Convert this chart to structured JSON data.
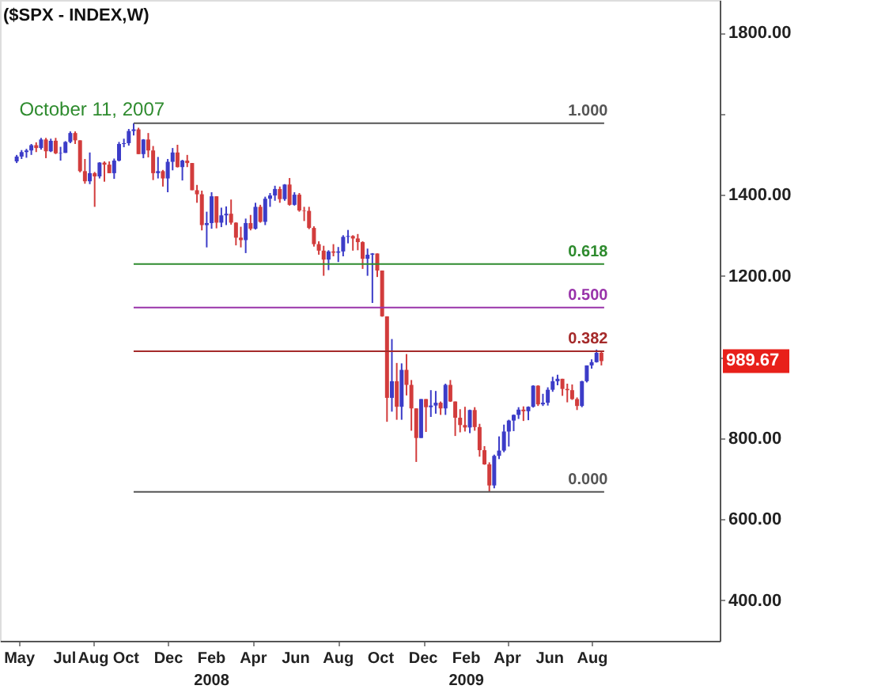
{
  "chart_data": {
    "type": "candlestick",
    "title": "($SPX - INDEX,W)",
    "x": [
      "2007-04-27",
      "2007-05-04",
      "2007-05-11",
      "2007-05-18",
      "2007-05-25",
      "2007-06-01",
      "2007-06-08",
      "2007-06-15",
      "2007-06-22",
      "2007-06-29",
      "2007-07-06",
      "2007-07-13",
      "2007-07-20",
      "2007-07-27",
      "2007-08-03",
      "2007-08-10",
      "2007-08-17",
      "2007-08-24",
      "2007-08-31",
      "2007-09-07",
      "2007-09-14",
      "2007-09-21",
      "2007-09-28",
      "2007-10-05",
      "2007-10-12",
      "2007-10-19",
      "2007-10-26",
      "2007-11-02",
      "2007-11-09",
      "2007-11-16",
      "2007-11-23",
      "2007-11-30",
      "2007-12-07",
      "2007-12-14",
      "2007-12-21",
      "2007-12-28",
      "2008-01-04",
      "2008-01-11",
      "2008-01-18",
      "2008-01-25",
      "2008-02-01",
      "2008-02-08",
      "2008-02-15",
      "2008-02-22",
      "2008-02-29",
      "2008-03-07",
      "2008-03-14",
      "2008-03-21",
      "2008-03-28",
      "2008-04-04",
      "2008-04-11",
      "2008-04-18",
      "2008-04-25",
      "2008-05-02",
      "2008-05-09",
      "2008-05-16",
      "2008-05-23",
      "2008-05-30",
      "2008-06-06",
      "2008-06-13",
      "2008-06-20",
      "2008-06-27",
      "2008-07-04",
      "2008-07-11",
      "2008-07-18",
      "2008-07-25",
      "2008-08-01",
      "2008-08-08",
      "2008-08-15",
      "2008-08-22",
      "2008-08-29",
      "2008-09-05",
      "2008-09-12",
      "2008-09-19",
      "2008-09-26",
      "2008-10-03",
      "2008-10-10",
      "2008-10-17",
      "2008-10-24",
      "2008-10-31",
      "2008-11-07",
      "2008-11-14",
      "2008-11-21",
      "2008-11-28",
      "2008-12-05",
      "2008-12-12",
      "2008-12-19",
      "2008-12-26",
      "2009-01-02",
      "2009-01-09",
      "2009-01-16",
      "2009-01-23",
      "2009-01-30",
      "2009-02-06",
      "2009-02-13",
      "2009-02-20",
      "2009-02-27",
      "2009-03-06",
      "2009-03-13",
      "2009-03-20",
      "2009-03-27",
      "2009-04-03",
      "2009-04-10",
      "2009-04-17",
      "2009-04-24",
      "2009-05-01",
      "2009-05-08",
      "2009-05-15",
      "2009-05-22",
      "2009-05-29",
      "2009-06-05",
      "2009-06-12",
      "2009-06-19",
      "2009-06-26",
      "2009-07-03",
      "2009-07-10",
      "2009-07-17",
      "2009-07-24",
      "2009-07-31",
      "2009-08-07",
      "2009-08-14"
    ],
    "ohlc": [
      [
        1482,
        1498,
        1478,
        1494
      ],
      [
        1494,
        1510,
        1488,
        1505
      ],
      [
        1505,
        1513,
        1491,
        1509
      ],
      [
        1509,
        1525,
        1498,
        1522
      ],
      [
        1522,
        1529,
        1505,
        1515
      ],
      [
        1515,
        1540,
        1511,
        1536
      ],
      [
        1536,
        1540,
        1490,
        1507
      ],
      [
        1507,
        1538,
        1505,
        1533
      ],
      [
        1533,
        1540,
        1500,
        1502
      ],
      [
        1502,
        1518,
        1484,
        1503
      ],
      [
        1503,
        1532,
        1503,
        1530
      ],
      [
        1530,
        1556,
        1527,
        1552
      ],
      [
        1552,
        1556,
        1525,
        1534
      ],
      [
        1534,
        1534,
        1455,
        1458
      ],
      [
        1458,
        1488,
        1427,
        1433
      ],
      [
        1433,
        1504,
        1426,
        1453
      ],
      [
        1453,
        1456,
        1370,
        1445
      ],
      [
        1445,
        1480,
        1440,
        1479
      ],
      [
        1479,
        1482,
        1432,
        1474
      ],
      [
        1474,
        1482,
        1453,
        1453
      ],
      [
        1453,
        1489,
        1439,
        1484
      ],
      [
        1484,
        1530,
        1482,
        1525
      ],
      [
        1525,
        1538,
        1517,
        1527
      ],
      [
        1527,
        1562,
        1521,
        1557
      ],
      [
        1557,
        1576,
        1546,
        1561
      ],
      [
        1561,
        1565,
        1500,
        1500
      ],
      [
        1500,
        1537,
        1490,
        1536
      ],
      [
        1536,
        1552,
        1492,
        1509
      ],
      [
        1509,
        1520,
        1436,
        1453
      ],
      [
        1453,
        1493,
        1440,
        1458
      ],
      [
        1458,
        1461,
        1420,
        1440
      ],
      [
        1440,
        1488,
        1406,
        1481
      ],
      [
        1481,
        1515,
        1460,
        1504
      ],
      [
        1504,
        1523,
        1467,
        1468
      ],
      [
        1468,
        1486,
        1435,
        1484
      ],
      [
        1484,
        1498,
        1468,
        1478
      ],
      [
        1478,
        1478,
        1411,
        1411
      ],
      [
        1411,
        1424,
        1380,
        1401
      ],
      [
        1401,
        1410,
        1312,
        1325
      ],
      [
        1325,
        1358,
        1270,
        1330
      ],
      [
        1330,
        1406,
        1316,
        1396
      ],
      [
        1396,
        1396,
        1317,
        1331
      ],
      [
        1331,
        1368,
        1320,
        1349
      ],
      [
        1349,
        1371,
        1325,
        1353
      ],
      [
        1353,
        1388,
        1326,
        1331
      ],
      [
        1331,
        1332,
        1275,
        1294
      ],
      [
        1294,
        1321,
        1270,
        1288
      ],
      [
        1288,
        1341,
        1256,
        1330
      ],
      [
        1330,
        1350,
        1312,
        1316
      ],
      [
        1316,
        1380,
        1314,
        1370
      ],
      [
        1370,
        1375,
        1331,
        1333
      ],
      [
        1333,
        1395,
        1325,
        1390
      ],
      [
        1390,
        1404,
        1370,
        1398
      ],
      [
        1398,
        1422,
        1385,
        1414
      ],
      [
        1414,
        1420,
        1380,
        1389
      ],
      [
        1389,
        1426,
        1385,
        1425
      ],
      [
        1425,
        1441,
        1373,
        1375
      ],
      [
        1375,
        1406,
        1373,
        1400
      ],
      [
        1400,
        1404,
        1358,
        1361
      ],
      [
        1361,
        1370,
        1335,
        1360
      ],
      [
        1360,
        1370,
        1315,
        1318
      ],
      [
        1318,
        1322,
        1272,
        1278
      ],
      [
        1278,
        1285,
        1252,
        1262
      ],
      [
        1262,
        1274,
        1200,
        1240
      ],
      [
        1240,
        1263,
        1214,
        1260
      ],
      [
        1260,
        1278,
        1248,
        1257
      ],
      [
        1257,
        1271,
        1234,
        1260
      ],
      [
        1260,
        1300,
        1248,
        1296
      ],
      [
        1296,
        1313,
        1280,
        1298
      ],
      [
        1298,
        1300,
        1262,
        1292
      ],
      [
        1292,
        1303,
        1263,
        1283
      ],
      [
        1283,
        1285,
        1217,
        1242
      ],
      [
        1242,
        1267,
        1200,
        1252
      ],
      [
        1252,
        1256,
        1133,
        1255
      ],
      [
        1255,
        1255,
        1197,
        1213
      ],
      [
        1213,
        1213,
        1099,
        1100
      ],
      [
        1100,
        1100,
        840,
        899
      ],
      [
        899,
        1044,
        865,
        940
      ],
      [
        940,
        985,
        845,
        877
      ],
      [
        877,
        984,
        845,
        968
      ],
      [
        968,
        1007,
        905,
        931
      ],
      [
        931,
        943,
        818,
        873
      ],
      [
        873,
        873,
        741,
        800
      ],
      [
        800,
        896,
        800,
        896
      ],
      [
        896,
        896,
        815,
        876
      ],
      [
        876,
        918,
        852,
        880
      ],
      [
        880,
        916,
        860,
        887
      ],
      [
        887,
        890,
        857,
        873
      ],
      [
        873,
        934,
        857,
        931
      ],
      [
        931,
        943,
        889,
        890
      ],
      [
        890,
        890,
        805,
        850
      ],
      [
        850,
        871,
        814,
        832
      ],
      [
        832,
        877,
        816,
        826
      ],
      [
        826,
        870,
        812,
        869
      ],
      [
        869,
        876,
        818,
        827
      ],
      [
        827,
        835,
        754,
        770
      ],
      [
        770,
        780,
        734,
        735
      ],
      [
        735,
        740,
        667,
        683
      ],
      [
        683,
        759,
        676,
        756
      ],
      [
        756,
        804,
        748,
        769
      ],
      [
        769,
        833,
        765,
        816
      ],
      [
        816,
        845,
        779,
        843
      ],
      [
        843,
        858,
        817,
        857
      ],
      [
        857,
        876,
        847,
        870
      ],
      [
        870,
        878,
        842,
        866
      ],
      [
        866,
        878,
        844,
        877
      ],
      [
        877,
        930,
        875,
        929
      ],
      [
        929,
        930,
        879,
        883
      ],
      [
        883,
        909,
        879,
        887
      ],
      [
        887,
        925,
        880,
        919
      ],
      [
        919,
        951,
        914,
        940
      ],
      [
        940,
        956,
        930,
        946
      ],
      [
        946,
        946,
        904,
        921
      ],
      [
        921,
        934,
        888,
        918
      ],
      [
        918,
        932,
        894,
        896
      ],
      [
        896,
        900,
        869,
        879
      ],
      [
        879,
        941,
        876,
        940
      ],
      [
        940,
        979,
        937,
        979
      ],
      [
        979,
        994,
        971,
        987
      ],
      [
        987,
        1018,
        986,
        1010
      ],
      [
        1010,
        1012,
        979,
        989.67
      ]
    ],
    "colors": [
      "#3c3cc8",
      "#3c3cc8",
      "#3c3cc8",
      "#3c3cc8",
      "#d23c3c",
      "#3c3cc8",
      "#d23c3c",
      "#3c3cc8",
      "#d23c3c",
      "#3c3cc8",
      "#3c3cc8",
      "#3c3cc8",
      "#d23c3c",
      "#d23c3c",
      "#d23c3c",
      "#3c3cc8",
      "#d23c3c",
      "#3c3cc8",
      "#d23c3c",
      "#d23c3c",
      "#3c3cc8",
      "#3c3cc8",
      "#3c3cc8",
      "#3c3cc8",
      "#3c3cc8",
      "#d23c3c",
      "#3c3cc8",
      "#d23c3c",
      "#d23c3c",
      "#3c3cc8",
      "#d23c3c",
      "#3c3cc8",
      "#3c3cc8",
      "#d23c3c",
      "#3c3cc8",
      "#d23c3c",
      "#d23c3c",
      "#d23c3c",
      "#d23c3c",
      "#3c3cc8",
      "#3c3cc8",
      "#d23c3c",
      "#3c3cc8",
      "#3c3cc8",
      "#d23c3c",
      "#d23c3c",
      "#d23c3c",
      "#3c3cc8",
      "#d23c3c",
      "#3c3cc8",
      "#d23c3c",
      "#3c3cc8",
      "#3c3cc8",
      "#3c3cc8",
      "#d23c3c",
      "#3c3cc8",
      "#d23c3c",
      "#3c3cc8",
      "#d23c3c",
      "#d23c3c",
      "#d23c3c",
      "#d23c3c",
      "#d23c3c",
      "#d23c3c",
      "#3c3cc8",
      "#d23c3c",
      "#3c3cc8",
      "#3c3cc8",
      "#3c3cc8",
      "#d23c3c",
      "#d23c3c",
      "#d23c3c",
      "#3c3cc8",
      "#3c3cc8",
      "#d23c3c",
      "#d23c3c",
      "#d23c3c",
      "#3c3cc8",
      "#d23c3c",
      "#3c3cc8",
      "#d23c3c",
      "#d23c3c",
      "#d23c3c",
      "#3c3cc8",
      "#d23c3c",
      "#3c3cc8",
      "#3c3cc8",
      "#d23c3c",
      "#3c3cc8",
      "#d23c3c",
      "#d23c3c",
      "#d23c3c",
      "#d23c3c",
      "#3c3cc8",
      "#d23c3c",
      "#d23c3c",
      "#d23c3c",
      "#d23c3c",
      "#3c3cc8",
      "#3c3cc8",
      "#3c3cc8",
      "#3c3cc8",
      "#3c3cc8",
      "#3c3cc8",
      "#d23c3c",
      "#3c3cc8",
      "#3c3cc8",
      "#d23c3c",
      "#3c3cc8",
      "#3c3cc8",
      "#3c3cc8",
      "#3c3cc8",
      "#d23c3c",
      "#d23c3c",
      "#d23c3c",
      "#d23c3c",
      "#3c3cc8",
      "#3c3cc8",
      "#3c3cc8",
      "#3c3cc8",
      "#d23c3c"
    ],
    "xlim": [
      "2007-04-03",
      "2010-01-31"
    ],
    "xticks": [
      {
        "value": "2007-05-01",
        "label": "May"
      },
      {
        "value": "2007-07-05",
        "label": "Jul"
      },
      {
        "value": "2007-08-15",
        "label": "Aug"
      },
      {
        "value": "2007-10-01",
        "label": "Oct"
      },
      {
        "value": "2007-12-01",
        "label": "Dec"
      },
      {
        "value": "2008-02-01",
        "label": "Feb\n2008"
      },
      {
        "value": "2008-04-01",
        "label": "Apr"
      },
      {
        "value": "2008-06-01",
        "label": "Jun"
      },
      {
        "value": "2008-08-01",
        "label": "Aug"
      },
      {
        "value": "2008-10-01",
        "label": "Oct"
      },
      {
        "value": "2008-12-01",
        "label": "Dec"
      },
      {
        "value": "2009-02-01",
        "label": "Feb\n2009"
      },
      {
        "value": "2009-04-01",
        "label": "Apr"
      },
      {
        "value": "2009-06-01",
        "label": "Jun"
      },
      {
        "value": "2009-08-01",
        "label": "Aug"
      }
    ],
    "ylim": [
      300,
      1880
    ],
    "yticks": [
      {
        "value": 400,
        "label": "400.00"
      },
      {
        "value": 600,
        "label": "600.00"
      },
      {
        "value": 800,
        "label": "800.00"
      },
      {
        "value": 1000,
        "label": null
      },
      {
        "value": 1200,
        "label": "1200.00"
      },
      {
        "value": 1400,
        "label": "1400.00"
      },
      {
        "value": 1600,
        "label": null
      },
      {
        "value": 1800,
        "label": "1800.00"
      }
    ],
    "ref_lines": [
      {
        "axis": "y",
        "value": 1576,
        "color": "#555555"
      },
      {
        "axis": "y",
        "value": 1229,
        "color": "#2e8b2e"
      },
      {
        "axis": "y",
        "value": 1121.5,
        "color": "#9933aa"
      },
      {
        "axis": "y",
        "value": 1014,
        "color": "#a52a2a"
      },
      {
        "axis": "y",
        "value": 667,
        "color": "#555555"
      }
    ],
    "annotations": [
      {
        "text": "October 11, 2007",
        "x": "2007-10-11",
        "y": 1576
      },
      {
        "text": "1.000",
        "x": "2009-08-14",
        "y": 1576
      },
      {
        "text": "0.618",
        "x": "2009-08-14",
        "y": 1229
      },
      {
        "text": "0.500",
        "x": "2009-08-14",
        "y": 1121.5
      },
      {
        "text": "0.382",
        "x": "2009-08-14",
        "y": 1014
      },
      {
        "text": "0.000",
        "x": "2009-08-14",
        "y": 667
      },
      "989.67"
    ],
    "grid": false
  }
}
